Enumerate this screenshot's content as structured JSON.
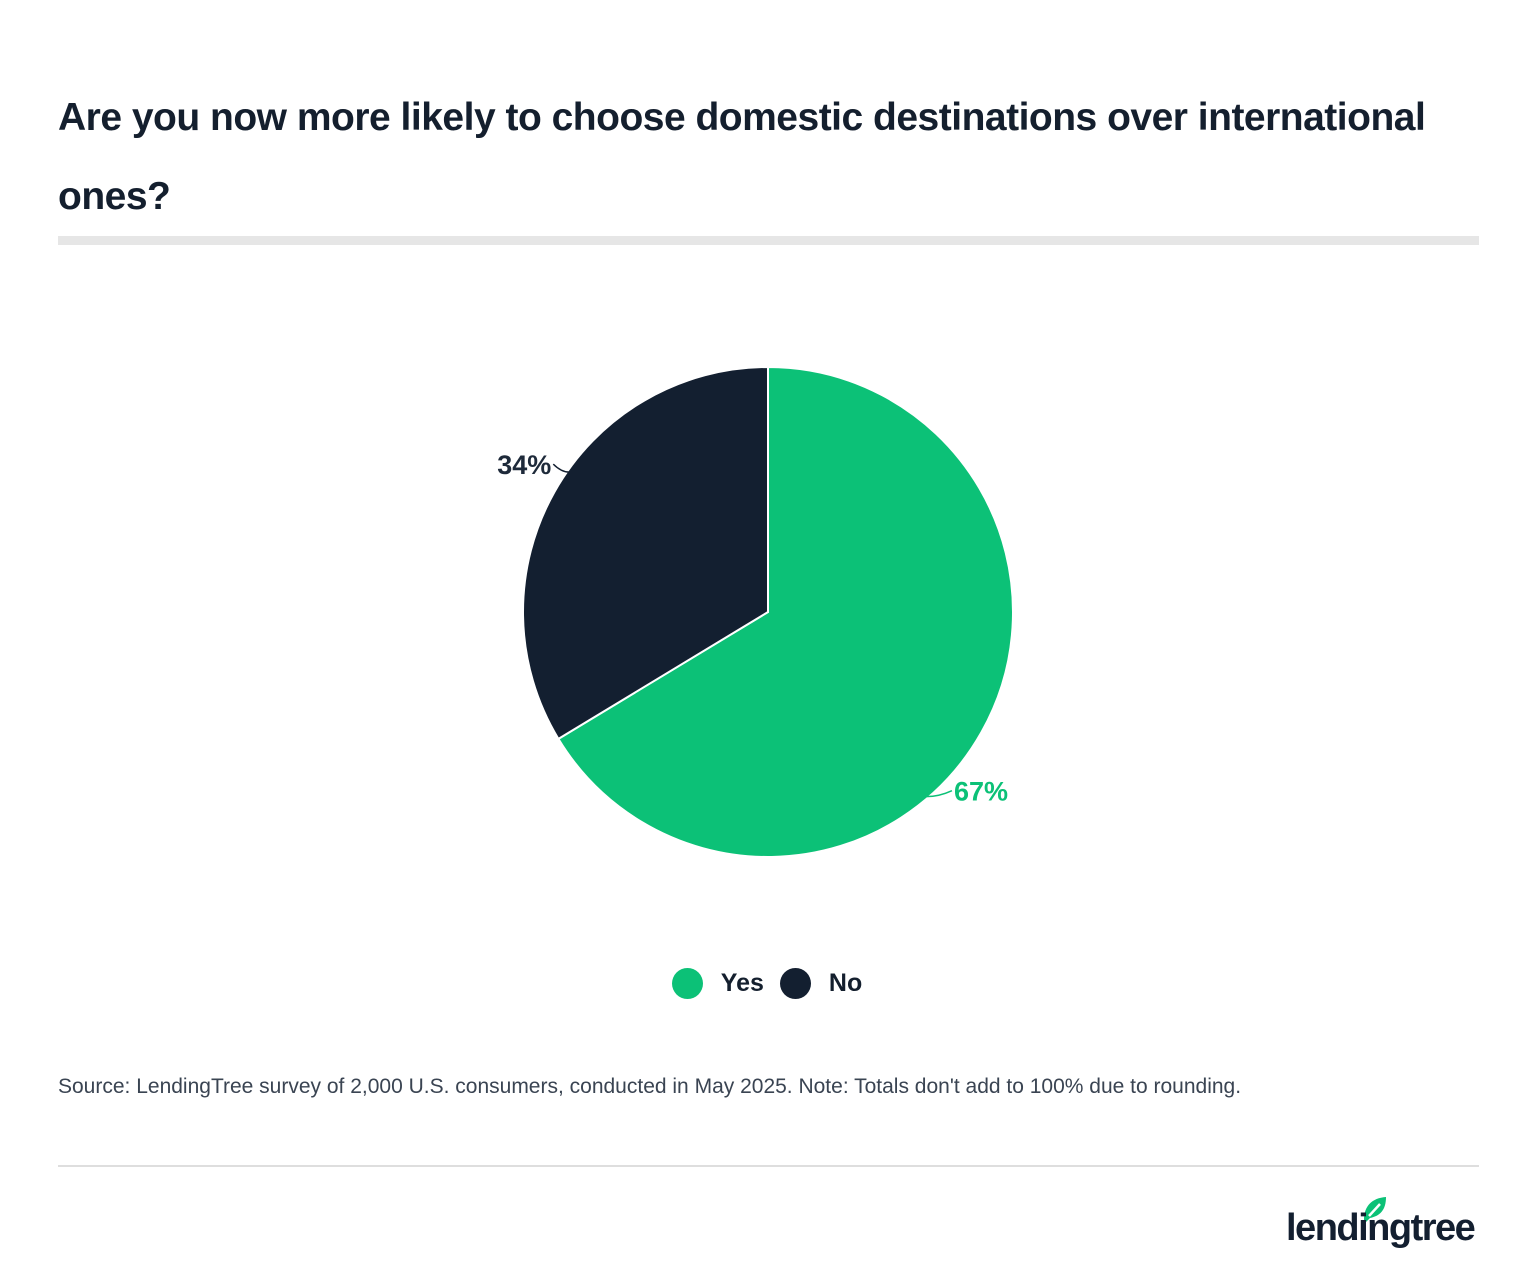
{
  "chart_data": {
    "type": "pie",
    "title": "Are you now more likely to choose domestic destinations over international ones?",
    "slices": [
      {
        "name": "Yes",
        "value": 67,
        "label": "67%",
        "color": "#0cc177"
      },
      {
        "name": "No",
        "value": 34,
        "label": "34%",
        "color": "#131f30"
      }
    ],
    "legend": "bottom-center",
    "start_angle": "12 o'clock, clockwise"
  },
  "source": "Source: LendingTree survey of 2,000 U.S. consumers, conducted in May 2025. Note: Totals don't add to 100% due to rounding.",
  "logo": {
    "text": "lendingtree",
    "color": "#131f30",
    "leaf_color": "#0cc177"
  }
}
